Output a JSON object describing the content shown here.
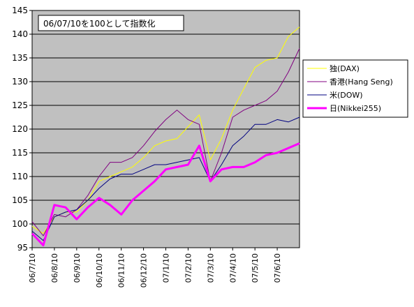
{
  "chart_data": {
    "type": "line",
    "title": "06/07/10を100として指数化",
    "xlabel": "",
    "ylabel": "",
    "ylim": [
      95,
      145
    ],
    "yticks": [
      95,
      100,
      105,
      110,
      115,
      120,
      125,
      130,
      135,
      140,
      145
    ],
    "grid": true,
    "legend_position": "right",
    "x_tick_labels": [
      "06/7/10",
      "06/8/10",
      "06/9/10",
      "06/10/10",
      "06/11/10",
      "06/12/10",
      "07/1/10",
      "07/2/10",
      "07/3/10",
      "07/4/10",
      "07/5/10",
      "07/6/10"
    ],
    "x": [
      "06/7/10",
      "06/7/25",
      "06/8/10",
      "06/8/25",
      "06/9/10",
      "06/9/25",
      "06/10/10",
      "06/10/25",
      "06/11/10",
      "06/11/25",
      "06/12/10",
      "06/12/25",
      "07/1/10",
      "07/1/25",
      "07/2/10",
      "07/2/25",
      "07/3/10",
      "07/3/25",
      "07/4/10",
      "07/4/25",
      "07/5/10",
      "07/5/25",
      "07/6/10",
      "07/6/25",
      "07/7/10"
    ],
    "series": [
      {
        "name": "独(DAX)",
        "color": "#ffff00",
        "width": 1,
        "values": [
          99.5,
          98,
          101.5,
          102.5,
          102.5,
          105,
          109,
          110,
          111,
          112,
          114,
          116.5,
          117.5,
          118,
          120.5,
          123,
          113.5,
          118,
          124,
          128.5,
          133,
          134.5,
          135,
          139.5,
          141.5
        ]
      },
      {
        "name": "香港(Hang Seng)",
        "color": "#800080",
        "width": 1,
        "values": [
          100.5,
          97.5,
          102,
          101.5,
          103,
          106,
          110,
          113,
          113,
          114,
          116.5,
          119.5,
          122,
          124,
          122,
          121,
          109,
          115,
          122.5,
          124,
          125,
          126,
          128,
          132,
          137
        ]
      },
      {
        "name": "米(DOW)",
        "color": "#000080",
        "width": 1,
        "values": [
          98.5,
          96.5,
          101.5,
          102.5,
          103,
          105,
          107.5,
          109.5,
          110.5,
          110.5,
          111.5,
          112.5,
          112.5,
          113,
          113.5,
          114,
          109,
          112.5,
          116.5,
          118.5,
          121,
          121,
          122,
          121.5,
          122.5
        ]
      },
      {
        "name": "日(Nikkei255)",
        "color": "#ff00ff",
        "width": 3,
        "values": [
          98,
          95.5,
          104,
          103.5,
          101,
          103.5,
          105.5,
          104,
          102,
          105,
          107,
          109,
          111.5,
          112,
          112.5,
          116.5,
          109,
          111.5,
          112,
          112,
          113,
          114.5,
          115,
          116,
          117
        ]
      }
    ]
  },
  "colors": {
    "plot_background": "#c0c0c0",
    "grid": "#000000"
  }
}
